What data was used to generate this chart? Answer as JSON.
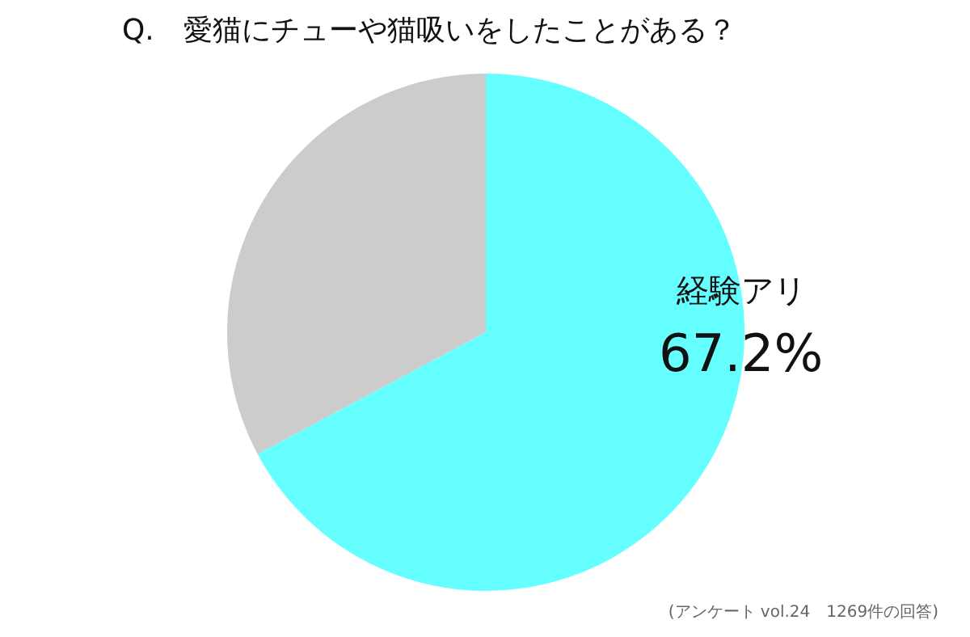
{
  "chart_data": {
    "type": "pie",
    "title": "Q.　愛猫にチューや猫吸いをしたことがある？",
    "categories": [
      "経験アリ",
      null
    ],
    "values": [
      67.2,
      32.8
    ],
    "colors": [
      "#66ffff",
      "#cccccc"
    ],
    "value_labels": [
      "67.2%",
      null
    ],
    "annotations": [
      "(アンケート vol.24　1269件の回答)"
    ]
  }
}
